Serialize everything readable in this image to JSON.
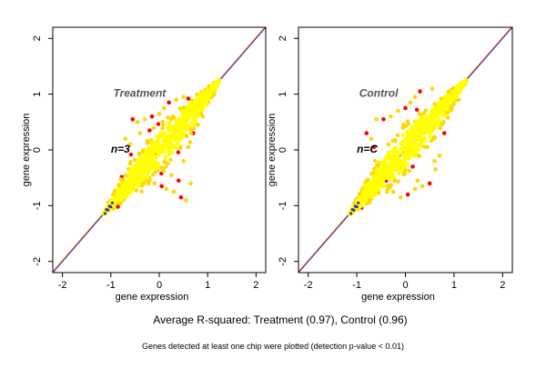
{
  "chart_data": [
    {
      "type": "scatter",
      "title": "Treatment",
      "annotation": "n=3",
      "xlabel": "gene expression",
      "ylabel": "gene expression",
      "xlim": [
        -2.2,
        2.2
      ],
      "ylim": [
        -2.2,
        2.2
      ],
      "xticks": [
        -2,
        -1,
        0,
        1,
        2
      ],
      "yticks": [
        -2,
        -1,
        0,
        1,
        2
      ],
      "tick_labels": [
        "-2",
        "-1",
        "0",
        "1",
        "2"
      ],
      "point_colors": {
        "outer": "#FF0000",
        "mid": "#FFD700",
        "inner": "#FFFF00"
      },
      "reference_lines": [
        {
          "slope": 1,
          "intercept": 0,
          "color": "#0000FF"
        },
        {
          "slope": 1,
          "intercept": 0.02,
          "color": "#FF8C00"
        }
      ],
      "cloud": {
        "x_range": [
          -1.15,
          1.25
        ],
        "y_range": [
          -1.15,
          1.25
        ],
        "r_squared": 0.97
      },
      "outliers": [
        [
          -0.55,
          0.55
        ],
        [
          -0.45,
          0.5
        ],
        [
          -0.3,
          0.55
        ],
        [
          -0.15,
          0.6
        ],
        [
          0.0,
          0.65
        ],
        [
          0.1,
          0.75
        ],
        [
          0.2,
          0.85
        ],
        [
          0.35,
          0.9
        ],
        [
          0.5,
          0.95
        ],
        [
          0.6,
          0.92
        ],
        [
          -0.7,
          0.2
        ],
        [
          -0.6,
          0.1
        ],
        [
          -0.5,
          -0.3
        ],
        [
          -0.3,
          -0.55
        ],
        [
          -0.1,
          -0.6
        ],
        [
          0.05,
          -0.65
        ],
        [
          0.15,
          -0.7
        ],
        [
          0.3,
          -0.75
        ],
        [
          0.45,
          -0.85
        ],
        [
          0.55,
          -0.9
        ],
        [
          0.65,
          -0.6
        ],
        [
          0.4,
          -0.55
        ],
        [
          0.25,
          -0.45
        ],
        [
          -0.85,
          -0.9
        ],
        [
          -0.9,
          -0.85
        ],
        [
          0.9,
          0.6
        ],
        [
          0.8,
          0.45
        ],
        [
          0.7,
          0.3
        ],
        [
          0.6,
          0.05
        ],
        [
          0.5,
          -0.2
        ],
        [
          -0.2,
          0.35
        ],
        [
          -0.4,
          0.3
        ],
        [
          -0.75,
          -0.55
        ],
        [
          -0.65,
          -0.75
        ]
      ]
    },
    {
      "type": "scatter",
      "title": "Control",
      "annotation": "n=C",
      "xlabel": "gene expression",
      "ylabel": "gene expression",
      "xlim": [
        -2.2,
        2.2
      ],
      "ylim": [
        -2.2,
        2.2
      ],
      "xticks": [
        -2,
        -1,
        0,
        1,
        2
      ],
      "yticks": [
        -2,
        -1,
        0,
        1,
        2
      ],
      "tick_labels": [
        "-2",
        "-1",
        "0",
        "1",
        "2"
      ],
      "point_colors": {
        "outer": "#FF0000",
        "mid": "#FFD700",
        "inner": "#FFFF00"
      },
      "reference_lines": [
        {
          "slope": 1,
          "intercept": 0,
          "color": "#0000FF"
        },
        {
          "slope": 1,
          "intercept": 0.02,
          "color": "#FF8C00"
        }
      ],
      "cloud": {
        "x_range": [
          -1.15,
          1.25
        ],
        "y_range": [
          -1.15,
          1.25
        ],
        "r_squared": 0.96
      },
      "outliers": [
        [
          -0.8,
          0.3
        ],
        [
          -0.7,
          0.2
        ],
        [
          -0.6,
          0.55
        ],
        [
          -0.45,
          0.55
        ],
        [
          -0.3,
          0.6
        ],
        [
          -0.15,
          0.7
        ],
        [
          0.0,
          0.75
        ],
        [
          0.1,
          0.85
        ],
        [
          0.2,
          0.95
        ],
        [
          0.3,
          1.05
        ],
        [
          0.55,
          1.1
        ],
        [
          -0.55,
          -0.45
        ],
        [
          -0.4,
          -0.55
        ],
        [
          -0.25,
          -0.75
        ],
        [
          -0.1,
          -0.85
        ],
        [
          0.05,
          -0.8
        ],
        [
          0.2,
          -0.7
        ],
        [
          0.35,
          -0.65
        ],
        [
          0.5,
          -0.6
        ],
        [
          0.6,
          -0.2
        ],
        [
          0.7,
          -0.1
        ],
        [
          0.8,
          0.3
        ],
        [
          0.45,
          0.05
        ],
        [
          -0.35,
          0.1
        ],
        [
          -0.75,
          -0.6
        ],
        [
          -0.9,
          -0.75
        ],
        [
          0.9,
          0.7
        ],
        [
          0.15,
          -0.3
        ],
        [
          -0.05,
          0.4
        ],
        [
          0.4,
          0.5
        ],
        [
          -0.65,
          0.05
        ],
        [
          0.62,
          -0.35
        ],
        [
          0.25,
          -0.55
        ],
        [
          -0.2,
          -0.25
        ]
      ]
    }
  ],
  "caption": {
    "main": "Average R-squared: Treatment (0.97), Control (0.96)",
    "sub": "Genes detected at least one chip were plotted (detection p-value < 0.01)"
  }
}
